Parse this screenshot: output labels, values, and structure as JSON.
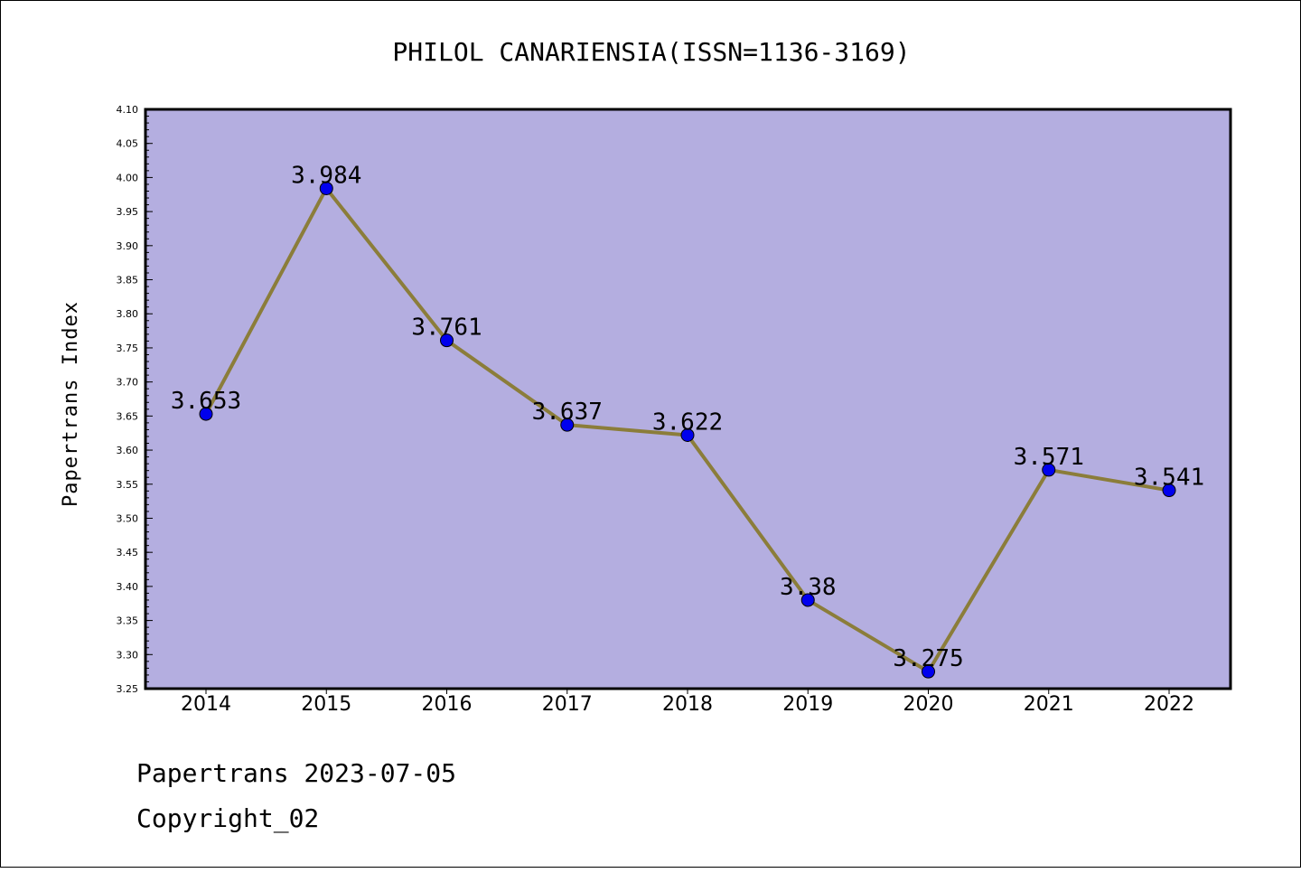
{
  "chart_data": {
    "type": "line",
    "title": "PHILOL CANARIENSIA(ISSN=1136-3169)",
    "ylabel": "Papertrans Index",
    "xlabel": "",
    "categories": [
      "2014",
      "2015",
      "2016",
      "2017",
      "2018",
      "2019",
      "2020",
      "2021",
      "2022"
    ],
    "values": [
      3.653,
      3.984,
      3.761,
      3.637,
      3.622,
      3.38,
      3.275,
      3.571,
      3.541
    ],
    "data_labels": [
      "3.653",
      "3.984",
      "3.761",
      "3.637",
      "3.622",
      "3.38",
      "3.275",
      "3.571",
      "3.541"
    ],
    "ylim": [
      3.25,
      4.1
    ],
    "yticks": [
      "3.25",
      "3.30",
      "3.35",
      "3.40",
      "3.45",
      "3.50",
      "3.55",
      "3.60",
      "3.65",
      "3.70",
      "3.75",
      "3.80",
      "3.85",
      "3.90",
      "3.95",
      "4.00",
      "4.05",
      "4.10"
    ],
    "grid": false,
    "colors": {
      "plot_background": "#b4aee0",
      "line": "#8b7d3a",
      "marker": "#0000ee"
    }
  },
  "footer": {
    "line1": "Papertrans 2023-07-05",
    "line2": "Copyright_02"
  }
}
